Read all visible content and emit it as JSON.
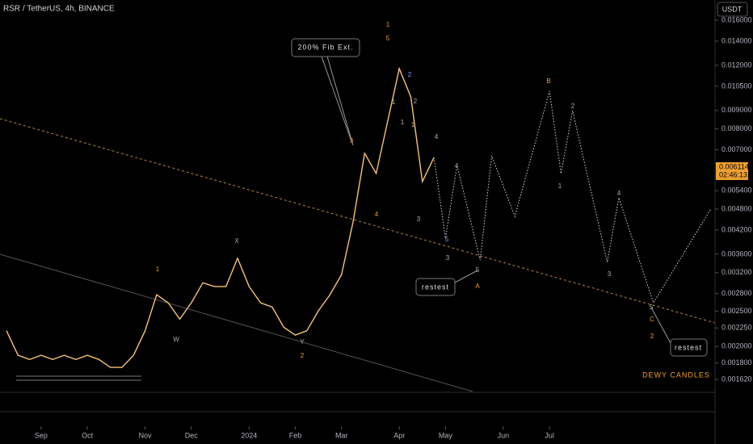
{
  "chart_data": {
    "type": "line",
    "title": "RSR / TetherUS, 4h, BINANCE",
    "currency": "USDT",
    "log_scale": true,
    "grid": false,
    "categories": [
      null,
      null,
      null,
      "Sep",
      null,
      null,
      null,
      "Oct",
      null,
      null,
      null,
      null,
      "Nov",
      null,
      null,
      null,
      "Dec",
      null,
      null,
      null,
      null,
      "2024",
      null,
      null,
      null,
      "Feb",
      null,
      null,
      null,
      "Mar",
      null,
      null,
      null,
      null,
      "Apr",
      null,
      null,
      null,
      "May",
      null,
      null,
      null,
      null,
      "Jun",
      null,
      null,
      null,
      "Jul",
      null,
      null,
      null,
      null,
      null,
      null,
      null,
      null,
      null,
      null,
      null,
      null,
      null,
      null
    ],
    "series": [
      {
        "color": "#f5c27a",
        "values": [
          0.00221,
          0.00189,
          0.00184,
          0.00189,
          0.00184,
          0.00189,
          0.00184,
          0.00189,
          0.00184,
          0.00175,
          0.00175,
          0.00189,
          0.00221,
          0.00278,
          0.00264,
          0.00238,
          0.00264,
          0.003,
          0.00293,
          0.00293,
          0.00351,
          0.00293,
          0.00264,
          0.00257,
          0.00226,
          0.00215,
          0.00221,
          0.00251,
          0.00278,
          0.00316,
          0.00442,
          0.00685,
          0.00602,
          0.00841,
          0.01175,
          0.00981,
          0.00572,
          0.00667,
          null,
          null,
          null,
          null,
          null,
          null,
          null,
          null,
          null,
          null,
          null,
          null,
          null,
          null,
          null,
          null,
          null,
          null,
          null,
          null,
          null,
          null,
          null,
          null
        ]
      },
      {
        "color": "#d8d8d8",
        "values": [
          null,
          null,
          null,
          null,
          null,
          null,
          null,
          null,
          null,
          null,
          null,
          null,
          null,
          null,
          null,
          null,
          null,
          null,
          null,
          null,
          null,
          null,
          null,
          null,
          null,
          null,
          null,
          null,
          null,
          null,
          null,
          null,
          null,
          null,
          null,
          null,
          null,
          0.00667,
          0.00399,
          0.00634,
          0.00469,
          0.00347,
          0.00674,
          0.00556,
          0.00458,
          0.00598,
          0.0078,
          0.01018,
          0.00602,
          0.00899,
          0.00651,
          0.00472,
          0.00342,
          0.00516,
          0.00413,
          0.0033,
          0.00264,
          0.00298,
          0.00336,
          0.00379,
          0.00428,
          0.00482
        ]
      }
    ],
    "ylim": [
      0.0015,
      0.0182
    ],
    "yticks": [
      {
        "value": 0.016,
        "label": "0.016000"
      },
      {
        "value": 0.014,
        "label": "0.014000"
      },
      {
        "value": 0.012,
        "label": "0.012000"
      },
      {
        "value": 0.0105,
        "label": "0.010500"
      },
      {
        "value": 0.009,
        "label": "0.009000"
      },
      {
        "value": 0.008,
        "label": "0.008000"
      },
      {
        "value": 0.007,
        "label": "0.007000"
      },
      {
        "value": 0.0054,
        "label": "0.005400"
      },
      {
        "value": 0.0048,
        "label": "0.004800"
      },
      {
        "value": 0.0042,
        "label": "0.004200"
      },
      {
        "value": 0.0036,
        "label": "0.003600"
      },
      {
        "value": 0.0032,
        "label": "0.003200"
      },
      {
        "value": 0.0028,
        "label": "0.002800"
      },
      {
        "value": 0.0025,
        "label": "0.002500"
      },
      {
        "value": 0.00225,
        "label": "0.002250"
      },
      {
        "value": 0.002,
        "label": "0.002000"
      },
      {
        "value": 0.0018,
        "label": "0.001800"
      },
      {
        "value": 0.00162,
        "label": "0.001620"
      }
    ],
    "last_price": 0.006114,
    "countdown": "02:46:13",
    "annotations": [
      "1",
      "5",
      "2",
      "1",
      "1",
      "2",
      "1",
      "3",
      "4",
      "3",
      "4",
      "4",
      "5",
      "3",
      "5",
      "A",
      "B",
      "2",
      "1",
      "4",
      "3",
      "5",
      "C",
      "2",
      "1",
      "W",
      "X",
      "Y",
      "2"
    ],
    "callouts": [
      "200% Fib Ext.",
      "restest",
      "restest"
    ],
    "watermark": "DEWY CANDLES"
  }
}
